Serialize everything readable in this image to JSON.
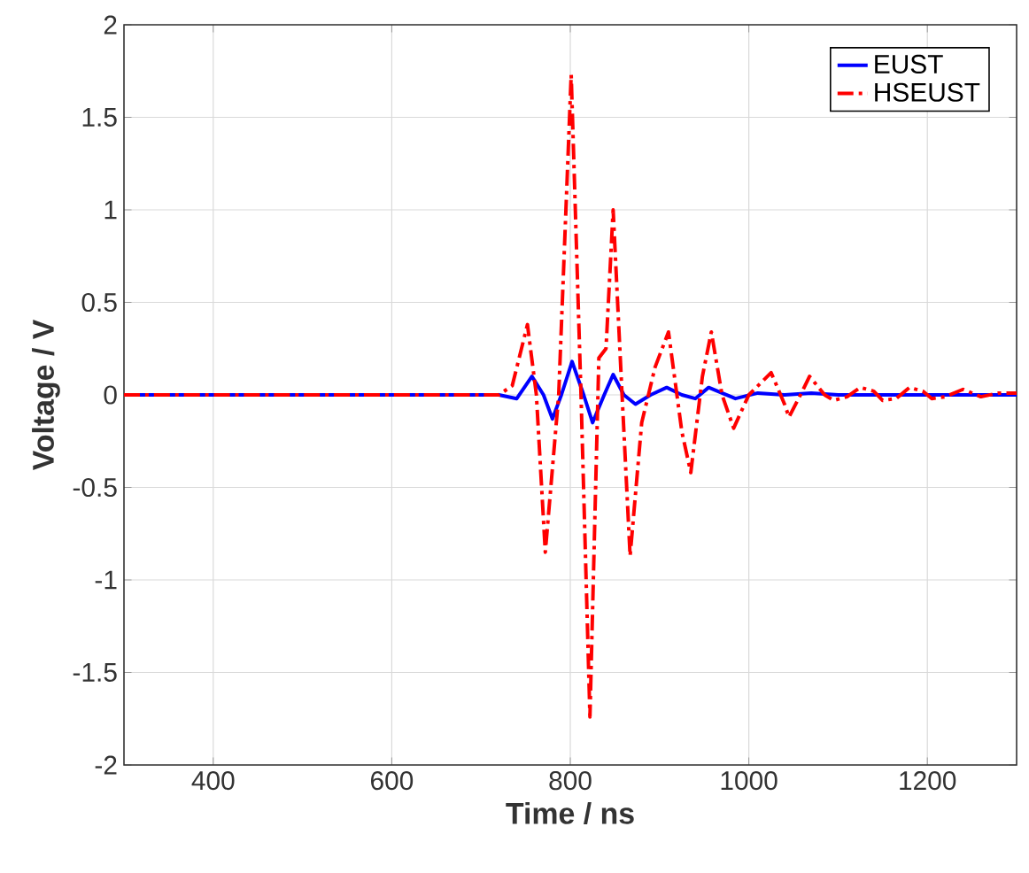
{
  "chart_data": {
    "type": "line",
    "xlabel": "Time / ns",
    "ylabel": "Voltage / V",
    "xlim": [
      300,
      1300
    ],
    "ylim": [
      -2,
      2
    ],
    "xticks": [
      400,
      600,
      800,
      1000,
      1200
    ],
    "yticks": [
      -2,
      -1.5,
      -1,
      -0.5,
      0,
      0.5,
      1,
      1.5,
      2
    ],
    "grid": true,
    "legend": "top right",
    "marker": "none",
    "series": [
      {
        "name": "EUST",
        "color": "#0000ff",
        "line_style": "solid",
        "x": [
          300,
          720,
          740,
          757,
          770,
          780,
          790,
          802,
          815,
          825,
          838,
          848,
          860,
          873,
          890,
          908,
          925,
          940,
          955,
          970,
          985,
          1010,
          1040,
          1070,
          1100,
          1300
        ],
        "values": [
          0,
          0,
          -0.02,
          0.1,
          0,
          -0.13,
          0,
          0.18,
          0,
          -0.15,
          0,
          0.11,
          0,
          -0.05,
          0,
          0.04,
          0,
          -0.02,
          0.04,
          0.01,
          -0.02,
          0.01,
          0,
          0.01,
          0,
          0
        ]
      },
      {
        "name": "HSEUST",
        "color": "#ff0000",
        "line_style": "dashdot",
        "x": [
          300,
          720,
          735,
          752,
          762,
          772,
          787,
          801,
          812,
          822,
          832,
          840,
          848,
          858,
          867,
          880,
          895,
          910,
          925,
          935,
          948,
          958,
          970,
          983,
          1000,
          1025,
          1040,
          1045,
          1060,
          1068,
          1085,
          1095,
          1110,
          1125,
          1140,
          1150,
          1165,
          1180,
          1195,
          1205,
          1220,
          1240,
          1260,
          1280,
          1300
        ],
        "values": [
          0,
          0,
          0.05,
          0.38,
          0,
          -0.85,
          0,
          1.73,
          0,
          -1.74,
          0.2,
          0.25,
          1.0,
          0,
          -0.87,
          -0.15,
          0.15,
          0.34,
          -0.2,
          -0.42,
          0.1,
          0.34,
          0,
          -0.18,
          0,
          0.12,
          -0.05,
          -0.12,
          0.02,
          0.1,
          0,
          -0.03,
          -0.01,
          0.04,
          0.02,
          -0.03,
          -0.02,
          0.04,
          0.02,
          -0.02,
          -0.01,
          0.03,
          -0.01,
          0.01,
          0.01
        ]
      }
    ]
  }
}
